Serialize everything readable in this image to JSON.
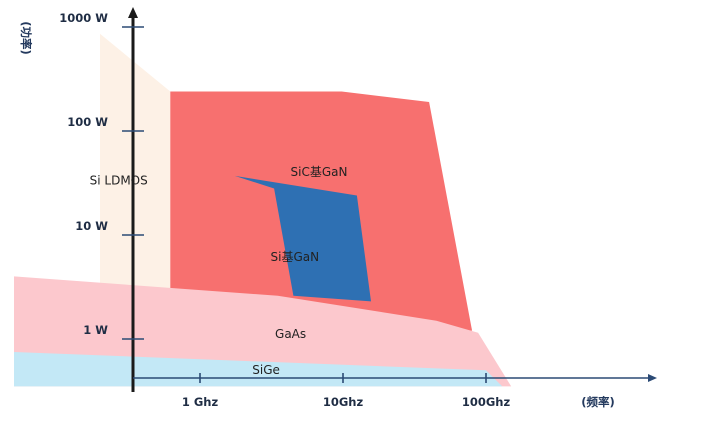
{
  "chart_data": {
    "type": "area",
    "title": "",
    "xlabel": "(频率)",
    "ylabel": "(功率)",
    "x_scale": "log",
    "y_scale": "log",
    "x_ticks": [
      {
        "value": 1,
        "label": "1 Ghz"
      },
      {
        "value": 10,
        "label": "10Ghz"
      },
      {
        "value": 100,
        "label": "100Ghz"
      }
    ],
    "y_ticks": [
      {
        "value": 1,
        "label": "1 W"
      },
      {
        "value": 10,
        "label": "10 W"
      },
      {
        "value": 100,
        "label": "100 W"
      },
      {
        "value": 1000,
        "label": "1000 W"
      }
    ],
    "grid": false,
    "legend": "none",
    "regions": [
      {
        "name": "Si LDMOS",
        "color": "#fdf1e6",
        "label_at": [
          0.27,
          33
        ],
        "points": [
          [
            0.2,
            860
          ],
          [
            0.62,
            240
          ],
          [
            0.62,
            2.6
          ],
          [
            0.2,
            2.6
          ]
        ]
      },
      {
        "name": "SiC基GaN",
        "color": "#f7706f",
        "label_at": [
          6.8,
          40
        ],
        "points": [
          [
            0.62,
            240
          ],
          [
            9.8,
            240
          ],
          [
            40,
            190
          ],
          [
            80,
            1.2
          ],
          [
            0.62,
            2.6
          ]
        ]
      },
      {
        "name": "Si基GaN",
        "color": "#2e70b3",
        "label_at": [
          4.6,
          6.1
        ],
        "points": [
          [
            1.75,
            37
          ],
          [
            12.5,
            24
          ],
          [
            15.7,
            2.3
          ],
          [
            4.5,
            2.6
          ],
          [
            3.3,
            28
          ]
        ]
      },
      {
        "name": "GaAs",
        "color": "#fcc8cd",
        "label_at": [
          4.3,
          1.11
        ],
        "points": [
          [
            0.05,
            4.0
          ],
          [
            3.5,
            2.6
          ],
          [
            45,
            1.5
          ],
          [
            88,
            1.15
          ],
          [
            150,
            0.35
          ],
          [
            0.05,
            0.35
          ]
        ]
      },
      {
        "name": "SiGe",
        "color": "#c3e8f6",
        "label_at": [
          2.9,
          0.5
        ],
        "points": [
          [
            0.05,
            0.75
          ],
          [
            100,
            0.5
          ],
          [
            130,
            0.35
          ],
          [
            0.05,
            0.35
          ]
        ]
      }
    ],
    "colors": {
      "axis": "#2b4a75",
      "tick_label": "#1f2d44"
    }
  }
}
